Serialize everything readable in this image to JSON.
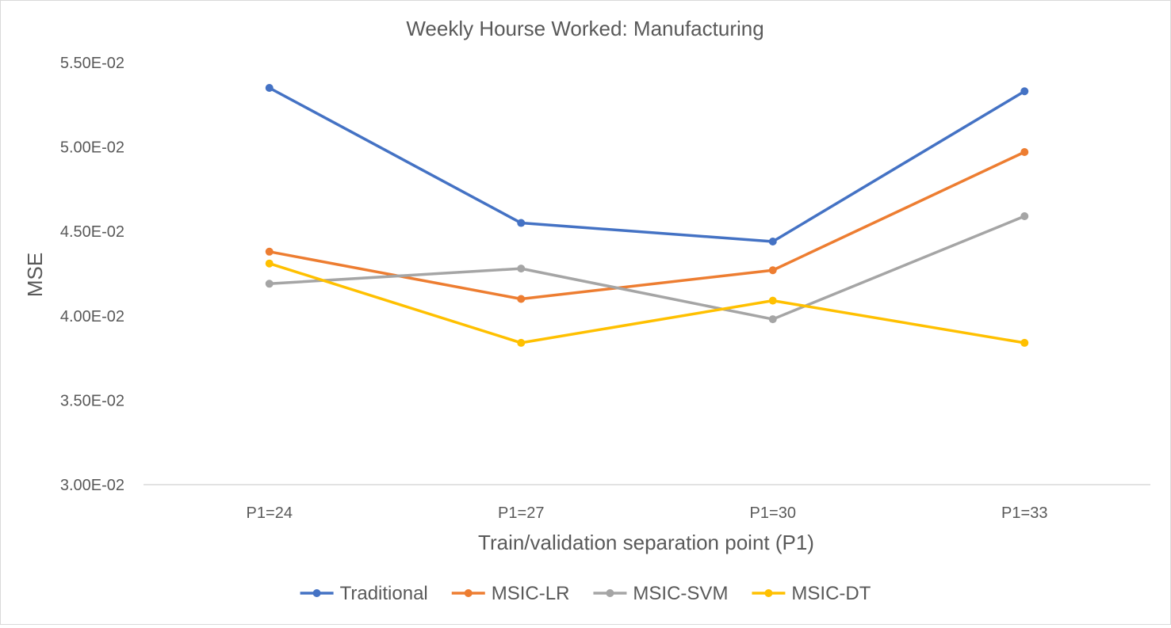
{
  "chart_data": {
    "type": "line",
    "title": "Weekly Hourse Worked: Manufacturing",
    "xlabel": "Train/validation separation point (P1)",
    "ylabel": "MSE",
    "categories": [
      "P1=24",
      "P1=27",
      "P1=30",
      "P1=33"
    ],
    "ylim": [
      0.03,
      0.055
    ],
    "yticks": [
      0.03,
      0.035,
      0.04,
      0.045,
      0.05,
      0.055
    ],
    "ytick_labels": [
      "3.00E-02",
      "3.50E-02",
      "4.00E-02",
      "4.50E-02",
      "5.00E-02",
      "5.50E-02"
    ],
    "grid": false,
    "legend_position": "bottom",
    "series": [
      {
        "name": "Traditional",
        "color": "#4472C4",
        "values": [
          0.0535,
          0.0455,
          0.0444,
          0.0533
        ]
      },
      {
        "name": "MSIC-LR",
        "color": "#ED7D31",
        "values": [
          0.0438,
          0.041,
          0.0427,
          0.0497
        ]
      },
      {
        "name": "MSIC-SVM",
        "color": "#A5A5A5",
        "values": [
          0.0419,
          0.0428,
          0.0398,
          0.0459
        ]
      },
      {
        "name": "MSIC-DT",
        "color": "#FFC000",
        "values": [
          0.0431,
          0.0384,
          0.0409,
          0.0384
        ]
      }
    ]
  }
}
